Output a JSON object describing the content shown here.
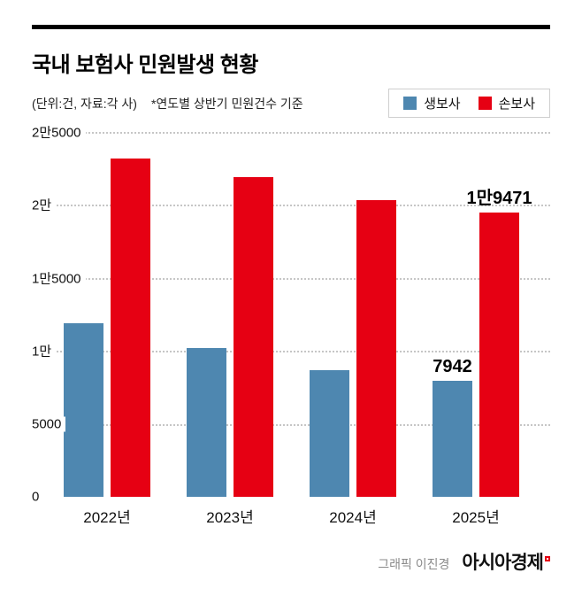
{
  "title": "국내 보험사 민원발생 현황",
  "meta": {
    "unit": "(단위:건, 자료:각 사)",
    "note": "*연도별 상반기 민원건수 기준"
  },
  "legend": [
    {
      "label": "생보사",
      "color": "#4e87b0"
    },
    {
      "label": "손보사",
      "color": "#e60013"
    }
  ],
  "footer": {
    "credit": "그래픽 이진경",
    "brand": "아시아경제"
  },
  "chart_data": {
    "type": "bar",
    "title": "국내 보험사 민원발생 현황",
    "unit_note": "(단위:건, 자료:각 사)",
    "basis_note": "*연도별 상반기 민원건수 기준",
    "categories": [
      "2022년",
      "2023년",
      "2024년",
      "2025년"
    ],
    "series": [
      {
        "name": "생보사",
        "color": "#4e87b0",
        "values": [
          11900,
          10200,
          8700,
          7942
        ],
        "labels": [
          "",
          "",
          "",
          "7942"
        ]
      },
      {
        "name": "손보사",
        "color": "#e60013",
        "values": [
          23200,
          21900,
          20300,
          19471
        ],
        "labels": [
          "",
          "",
          "",
          "1만9471"
        ]
      }
    ],
    "ylim": [
      0,
      25000
    ],
    "y_ticks": [
      {
        "value": 0,
        "label": "0"
      },
      {
        "value": 5000,
        "label": "5000"
      },
      {
        "value": 10000,
        "label": "1만"
      },
      {
        "value": 15000,
        "label": "1만5000"
      },
      {
        "value": 20000,
        "label": "2만"
      },
      {
        "value": 25000,
        "label": "2만5000"
      }
    ],
    "grid": "dotted horizontal",
    "legend_position": "top-right"
  }
}
